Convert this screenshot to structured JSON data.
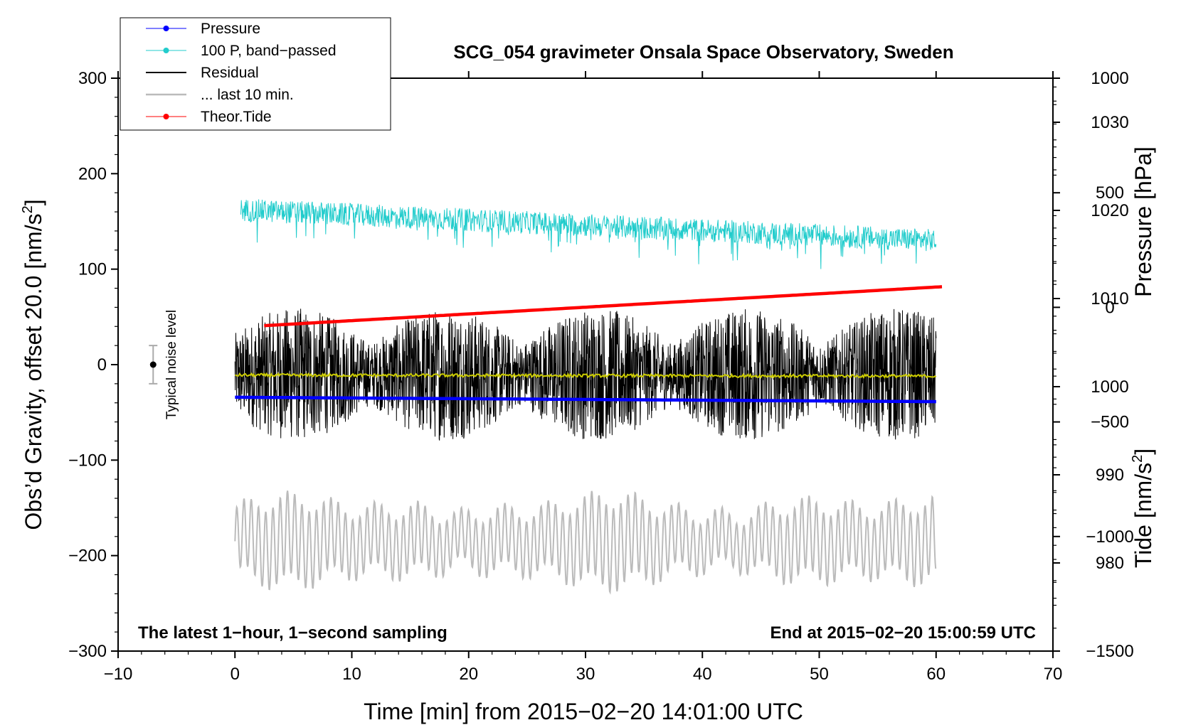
{
  "chart_data": {
    "type": "line",
    "title": "SCG_054 gravimeter Onsala Space Observatory, Sweden",
    "xlabel": "Time [min] from 2015−02−20 14:01:00 UTC",
    "ylabel_left_prefix": "Obs’d Gravity, offset 20.0 [nm/s",
    "ylabel_left_sup": "2",
    "ylabel_left_suffix": "]",
    "ylabel_right_top": "Pressure [hPa]",
    "ylabel_right_bottom_prefix": "Tide [nm/s",
    "ylabel_right_bottom_sup": "2",
    "ylabel_right_bottom_suffix": "]",
    "xlim": [
      -10,
      70
    ],
    "ylim_left": [
      -300,
      300
    ],
    "ylim_pressure": [
      970,
      1035
    ],
    "ylim_tide": [
      -1500,
      1000
    ],
    "x_ticks": [
      "−10",
      "0",
      "10",
      "20",
      "30",
      "40",
      "50",
      "60",
      "70"
    ],
    "x_tick_values": [
      -10,
      0,
      10,
      20,
      30,
      40,
      50,
      60,
      70
    ],
    "y_left_ticks": [
      "300",
      "200",
      "100",
      "0",
      "−100",
      "−200",
      "−300"
    ],
    "y_left_tick_values": [
      300,
      200,
      100,
      0,
      -100,
      -200,
      -300
    ],
    "pressure_ticks": [
      "1030",
      "1020",
      "1010",
      "1000",
      "990",
      "980"
    ],
    "pressure_tick_values": [
      1030,
      1020,
      1010,
      1000,
      990,
      980
    ],
    "tide_ticks": [
      "1000",
      "500",
      "0",
      "−500",
      "−1000",
      "−1500"
    ],
    "tide_tick_values": [
      1000,
      500,
      0,
      -500,
      -1000,
      -1500
    ],
    "legend": [
      {
        "label": "Pressure",
        "color": "#0000ff",
        "marker": true
      },
      {
        "label": "100 P, band−passed",
        "color": "#22cccc",
        "marker": true
      },
      {
        "label": "Residual",
        "color": "#000000",
        "marker": false
      },
      {
        "label": "... last 10 min.",
        "color": "#bbbbbb",
        "marker": false
      },
      {
        "label": "Theor.Tide",
        "color": "#ff0000",
        "marker": true
      }
    ],
    "noise_label": "Typical noise level",
    "noise_level": {
      "x": -7,
      "center": 0,
      "half_range": 20
    },
    "note_left": "The latest 1−hour, 1−second sampling",
    "note_right": "End at 2015−02−20 15:00:59 UTC",
    "series": [
      {
        "name": "Pressure",
        "axis": "pressure",
        "color": "#0000ff",
        "x_range": [
          0,
          60
        ],
        "start": 998.8,
        "end": 998.3
      },
      {
        "name": "100 P, band-passed",
        "axis": "left",
        "color": "#22cccc",
        "x_range": [
          0.5,
          60
        ],
        "start": 162,
        "end": 130,
        "amplitude": 12
      },
      {
        "name": "Residual",
        "axis": "left",
        "color": "#000000",
        "x_range": [
          0,
          60
        ],
        "center": -10,
        "amplitude": 50
      },
      {
        "name": "Residual mean",
        "axis": "left",
        "color": "#cccc00",
        "x_range": [
          0,
          60
        ],
        "start": -11,
        "end": -12
      },
      {
        "name": "... last 10 min.",
        "axis": "left",
        "color": "#bbbbbb",
        "x_range": [
          0,
          60
        ],
        "center": -185,
        "amplitude": 45
      },
      {
        "name": "Theor.Tide",
        "axis": "tide",
        "color": "#ff0000",
        "x_range": [
          2.5,
          60.5
        ],
        "start": -80,
        "end": 90
      }
    ],
    "colors": {
      "yellow": "#cccc00"
    }
  }
}
